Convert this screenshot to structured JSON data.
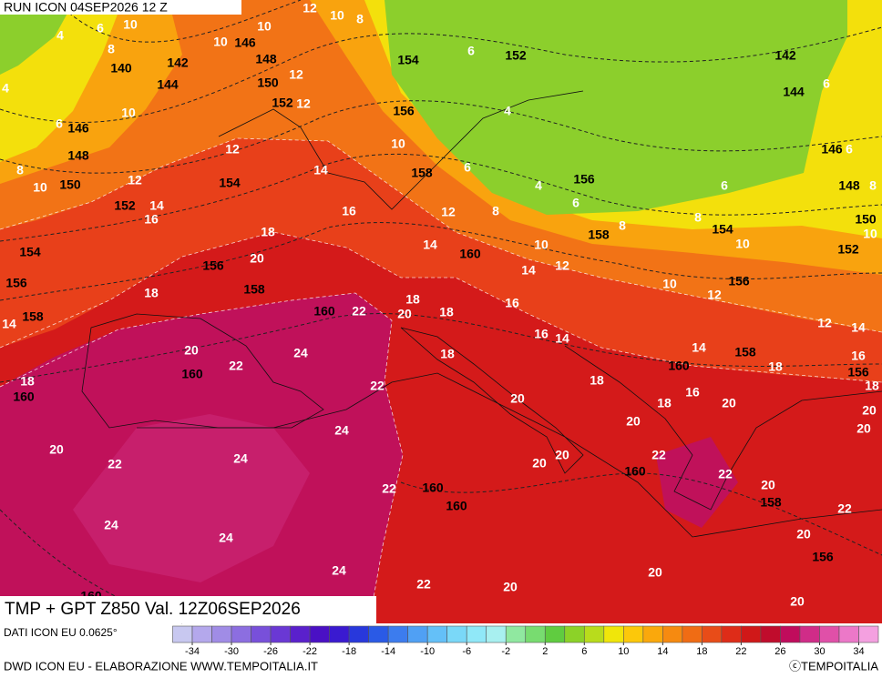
{
  "header": {
    "run": "RUN ICON 04SEP2026 12 Z"
  },
  "map": {
    "title": "TMP + GPT Z850 Val. 12Z06SEP2026",
    "temperature_labels": [
      12,
      10,
      8,
      10,
      6,
      4,
      8,
      10,
      10,
      12,
      12,
      10,
      6,
      4,
      8,
      10,
      12,
      14,
      16,
      12,
      14,
      16,
      18,
      20,
      18,
      10,
      6,
      6,
      4,
      4,
      6,
      8,
      12,
      14,
      10,
      14,
      12,
      8,
      8,
      10,
      10,
      12,
      6,
      6,
      6,
      8,
      10,
      12,
      14,
      16,
      18,
      14,
      16,
      16,
      14,
      18,
      18,
      20,
      18,
      22,
      20,
      22,
      24,
      22,
      18,
      20,
      18,
      16,
      20,
      18,
      20,
      20,
      20,
      24,
      22,
      20,
      24,
      20,
      20,
      22,
      22,
      20,
      22,
      24,
      24,
      24,
      22,
      20,
      20,
      20,
      20,
      22,
      18,
      14
    ],
    "geopotential_labels": [
      146,
      148,
      150,
      152,
      140,
      142,
      144,
      146,
      148,
      150,
      152,
      154,
      154,
      156,
      158,
      160,
      156,
      158,
      160,
      160,
      154,
      152,
      156,
      158,
      156,
      158,
      160,
      154,
      156,
      158,
      160,
      142,
      144,
      146,
      148,
      150,
      152,
      156,
      158,
      160,
      160,
      160,
      156,
      160
    ]
  },
  "footer": {
    "data_source": "DATI ICON EU 0.0625°",
    "credit": "DWD ICON EU - ELABORAZIONE WWW.TEMPOITALIA.IT",
    "copyright": "ⓒTEMPOITALIA"
  },
  "colorbar": {
    "range": [
      -36,
      36
    ],
    "ticks": [
      -34,
      -30,
      -26,
      -22,
      -18,
      -14,
      -10,
      -6,
      -2,
      2,
      6,
      10,
      14,
      18,
      22,
      26,
      30,
      34
    ],
    "colors": [
      "#c8c8f0",
      "#b4a8ec",
      "#a08ce6",
      "#8c6ee0",
      "#7850da",
      "#6a38d4",
      "#5a20cc",
      "#4a10c4",
      "#3a1ad0",
      "#2838dc",
      "#2a5ae6",
      "#3c7cee",
      "#50a0f4",
      "#64c0f8",
      "#7ad8f8",
      "#90e8f8",
      "#a8f0f0",
      "#90e8a0",
      "#78dc70",
      "#60cc40",
      "#8cd228",
      "#b8dc1c",
      "#f0e60a",
      "#fcc80a",
      "#faa80c",
      "#f68a10",
      "#f06c14",
      "#e84c18",
      "#de2c18",
      "#d01818",
      "#c00c2c",
      "#c00c5c",
      "#d02c88",
      "#e050a8",
      "#ec78c8",
      "#f4a0e0"
    ]
  }
}
